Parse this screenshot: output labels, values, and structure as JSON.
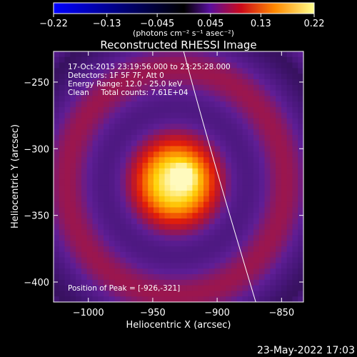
{
  "chart_data": {
    "type": "heatmap",
    "title": "Reconstructed RHESSI Image",
    "xlabel": "Heliocentric X (arcsec)",
    "ylabel": "Heliocentric Y (arcsec)",
    "xlim": [
      -1027,
      -833
    ],
    "ylim": [
      -415,
      -227
    ],
    "xticks": [
      -1000,
      -950,
      -900,
      -850
    ],
    "xtick_labels": [
      "−1000",
      "−950",
      "−900",
      "−850"
    ],
    "yticks": [
      -250,
      -300,
      -350,
      -400
    ],
    "ytick_labels": [
      "−250",
      "−300",
      "−350",
      "−400"
    ],
    "colorbar": {
      "min": -0.22,
      "max": 0.22,
      "ticks": [
        -0.22,
        -0.13,
        -0.045,
        0.045,
        0.13,
        0.22
      ],
      "tick_labels": [
        "−0.22",
        "−0.13",
        "−0.045",
        "0.045",
        "0.13",
        "0.22"
      ],
      "unit_label": "(photons cm⁻² s⁻¹ asec⁻²)"
    },
    "annotations": [
      "17-Oct-2015 23:19:56.000 to 23:25:28.000",
      "Detectors: 1F 5F 7F, Att 0",
      "Energy Range: 12.0 - 25.0 keV",
      "Clean     Total counts: 7.61E+04"
    ],
    "peak_label": "Position of Peak = [-926,-321]",
    "peak": [
      -926,
      -321
    ],
    "limb_line": [
      [
        -926,
        -227
      ],
      [
        -906,
        -300
      ],
      [
        -884,
        -370
      ],
      [
        -870,
        -415
      ]
    ],
    "colors": {
      "background": "#000000",
      "axes": "#ffffff",
      "limb": "#ffffff"
    }
  },
  "footer": {
    "date": "23-May-2022 17:03"
  }
}
